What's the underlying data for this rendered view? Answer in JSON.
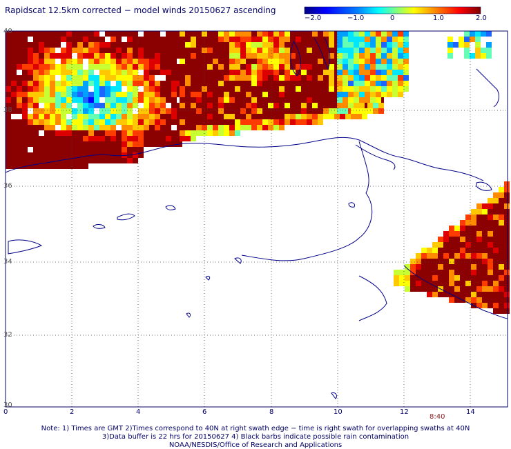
{
  "title": "Rapidscat 12.5km corrected − model winds 20150627 ascending",
  "colorbar": {
    "ticks": [
      "−2.0",
      "−1.0",
      "0",
      "1.0",
      "2.0"
    ],
    "min": -2.0,
    "max": 2.0,
    "colors": [
      "#00007f",
      "#0000ff",
      "#007fff",
      "#00ffff",
      "#7fff7f",
      "#ffff00",
      "#ff7f00",
      "#ff0000",
      "#7f0000"
    ]
  },
  "axes": {
    "lon_ticks": [
      "0",
      "2",
      "4",
      "6",
      "8",
      "10",
      "12",
      "14"
    ],
    "lat_ticks": [
      "40",
      "38",
      "36",
      "34",
      "32",
      "30"
    ]
  },
  "time_label": "8:40",
  "notes": [
    "Note: 1) Times are GMT 2)Times correspond to 40N at right swath edge − time is right swath for overlapping swaths at 40N",
    "3)Data buffer is 22 hrs for 20150627 4) Black barbs indicate possible rain contamination",
    "NOAA/NESDIS/Office of Research and Applications"
  ]
}
